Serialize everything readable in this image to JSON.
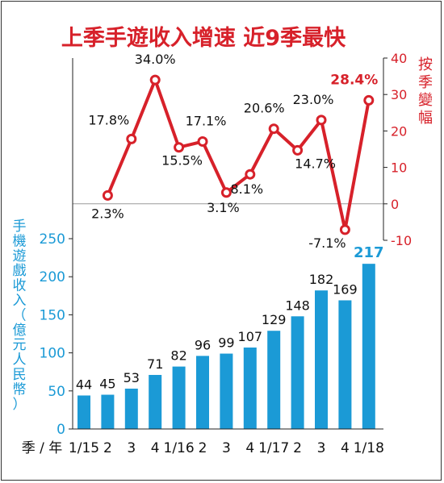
{
  "chart_data": {
    "title": "上季手遊收入增速 近9季最快",
    "categories": [
      "1/15",
      "2",
      "3",
      "4",
      "1/16",
      "2",
      "3",
      "4",
      "1/17",
      "2",
      "3",
      "4",
      "1/18"
    ],
    "x_axis_prefix": "季 / 年",
    "bar": {
      "type": "bar",
      "ylabel": "手機遊戲收入（億元人民幣）",
      "ylim": [
        0,
        250
      ],
      "yticks": [
        0,
        50,
        100,
        150,
        200,
        250
      ],
      "values": [
        44,
        45,
        53,
        71,
        82,
        96,
        99,
        107,
        129,
        148,
        182,
        169,
        217
      ],
      "labels": [
        "44",
        "45",
        "53",
        "71",
        "82",
        "96",
        "99",
        "107",
        "129",
        "148",
        "182",
        "169",
        "217"
      ],
      "color": "#1b9ad6"
    },
    "line": {
      "type": "line",
      "ylabel": "按季變幅",
      "ylim": [
        -10,
        40
      ],
      "yticks": [
        "40",
        "30",
        "20",
        "10",
        "0",
        "-10"
      ],
      "x_indices": [
        1,
        2,
        3,
        4,
        5,
        6,
        7,
        8,
        9,
        10,
        11,
        12
      ],
      "values": [
        2.3,
        17.8,
        34.0,
        15.5,
        17.1,
        3.1,
        8.1,
        20.6,
        14.7,
        23.0,
        -7.1,
        28.4
      ],
      "labels": [
        "2.3%",
        "17.8%",
        "34.0%",
        "15.5%",
        "17.1%",
        "3.1%",
        "8.1%",
        "20.6%",
        "14.7%",
        "23.0%",
        "-7.1%",
        "28.4%"
      ],
      "color": "#d7212a"
    }
  }
}
